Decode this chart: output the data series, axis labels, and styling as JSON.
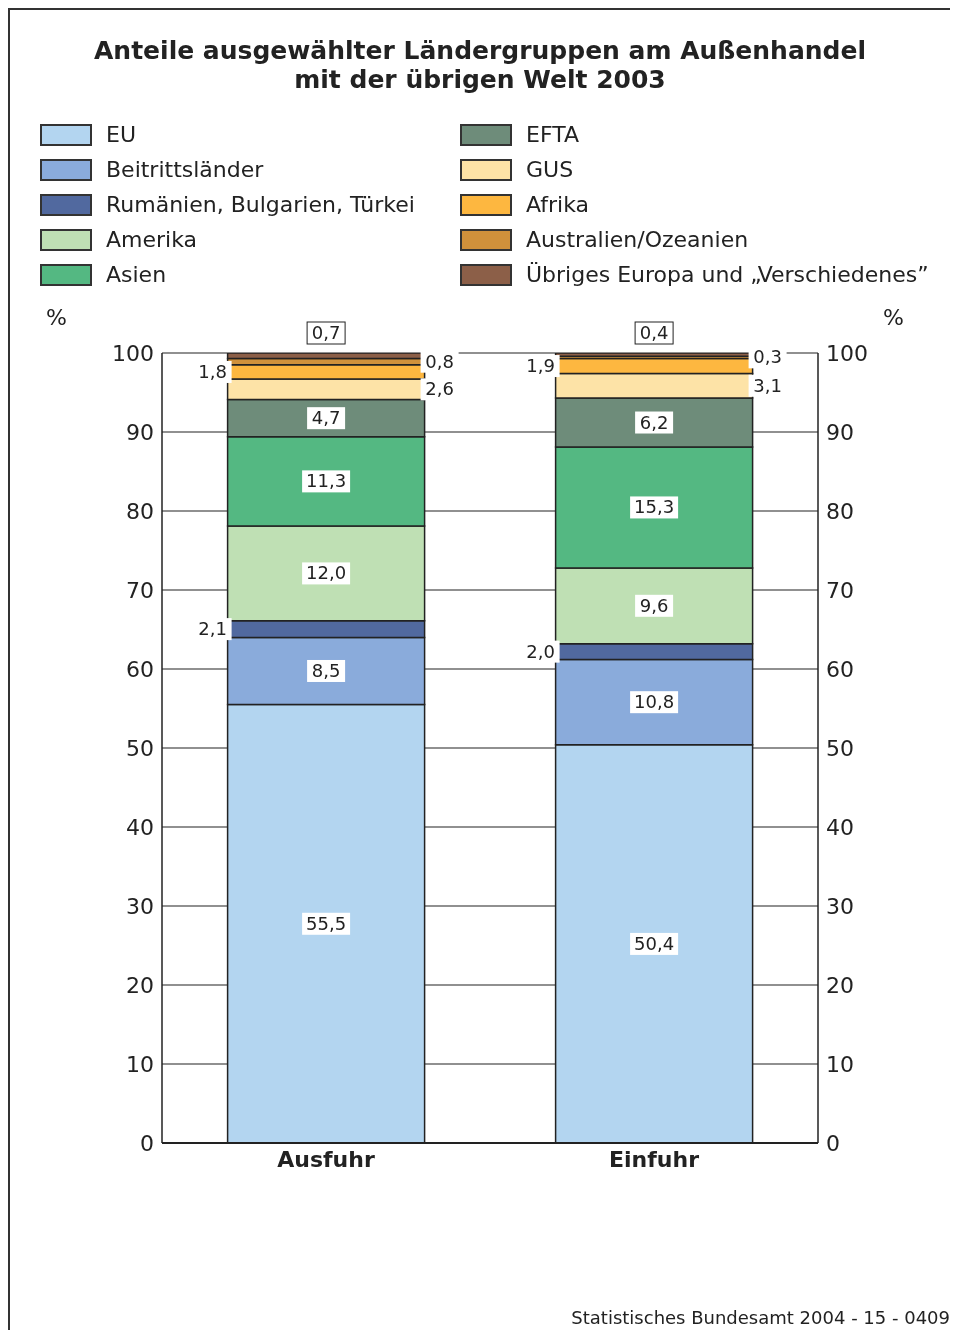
{
  "chart_data": {
    "type": "bar",
    "stacked": true,
    "title": "Anteile ausgewählter Ländergruppen am Außenhandel\nmit der übrigen Welt 2003",
    "categories": [
      "Ausfuhr",
      "Einfuhr"
    ],
    "series": [
      {
        "name": "EU",
        "color": "#b3d5f0",
        "values": [
          55.5,
          50.4
        ],
        "value_labels": [
          "55,5",
          "50,4"
        ]
      },
      {
        "name": "Beitrittsländer",
        "color": "#8aabdb",
        "values": [
          8.5,
          10.8
        ],
        "value_labels": [
          "8,5",
          "10,8"
        ]
      },
      {
        "name": "Rumänien, Bulgarien, Türkei",
        "color": "#51699f",
        "values": [
          2.1,
          2.0
        ],
        "value_labels": [
          "2,1",
          "2,0"
        ]
      },
      {
        "name": "Amerika",
        "color": "#bfe0b4",
        "values": [
          12.0,
          9.6
        ],
        "value_labels": [
          "12,0",
          "9,6"
        ]
      },
      {
        "name": "Asien",
        "color": "#54b882",
        "values": [
          11.3,
          15.3
        ],
        "value_labels": [
          "11,3",
          "15,3"
        ]
      },
      {
        "name": "EFTA",
        "color": "#6e8c7a",
        "values": [
          4.7,
          6.2
        ],
        "value_labels": [
          "4,7",
          "6,2"
        ]
      },
      {
        "name": "GUS",
        "color": "#fde3a7",
        "values": [
          2.6,
          3.1
        ],
        "value_labels": [
          "2,6",
          "3,1"
        ]
      },
      {
        "name": "Afrika",
        "color": "#fdb740",
        "values": [
          1.8,
          1.9
        ],
        "value_labels": [
          "1,8",
          "1,9"
        ]
      },
      {
        "name": "Australien/Ozeanien",
        "color": "#d0913b",
        "values": [
          0.8,
          0.3
        ],
        "value_labels": [
          "0,8",
          "0,3"
        ]
      },
      {
        "name": "Übriges Europa und „Verschiedenes”",
        "color": "#8c5f48",
        "values": [
          0.7,
          0.4
        ],
        "value_labels": [
          "0,7",
          "0,4"
        ]
      }
    ],
    "ylabel": "%",
    "y2label": "%",
    "ylim": [
      0,
      100
    ],
    "yticks": [
      0,
      10,
      20,
      30,
      40,
      50,
      60,
      70,
      80,
      90,
      100
    ],
    "y2lim": [
      0,
      100
    ],
    "y2ticks": [
      0,
      10,
      20,
      30,
      40,
      50,
      60,
      70,
      80,
      90,
      100
    ],
    "grid": "y",
    "legend": "top",
    "annotations": [
      "Statistisches Bundesamt 2004 - 15 - 0409"
    ]
  }
}
